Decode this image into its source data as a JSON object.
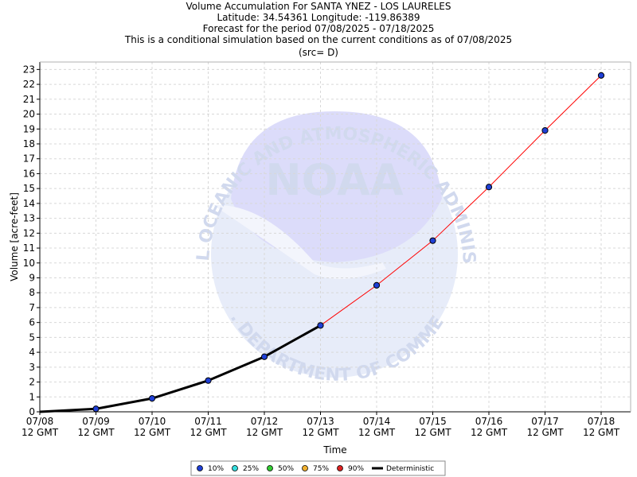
{
  "titles": [
    "Volume Accumulation For SANTA YNEZ - LOS LAURELES",
    "Latitude: 34.54361 Longitude: -119.86389",
    "Forecast for the period 07/08/2025 - 07/18/2025",
    "This is a conditional simulation based on the current conditions as of 07/08/2025",
    "(src= D)"
  ],
  "watermark": {
    "logo_text": "NOAA",
    "top_arc": "NATIONAL OCEANIC AND ATMOSPHERIC ADMINISTRATION",
    "bottom_arc": "U.S. DEPARTMENT OF COMMERCE"
  },
  "chart_data": {
    "type": "line",
    "title": "Volume Accumulation For SANTA YNEZ - LOS LAURELES",
    "xlabel": "Time",
    "ylabel": "Volume [acre-feet]",
    "x_tick_labels": [
      [
        "07/08",
        "12 GMT"
      ],
      [
        "07/09",
        "12 GMT"
      ],
      [
        "07/10",
        "12 GMT"
      ],
      [
        "07/11",
        "12 GMT"
      ],
      [
        "07/12",
        "12 GMT"
      ],
      [
        "07/13",
        "12 GMT"
      ],
      [
        "07/14",
        "12 GMT"
      ],
      [
        "07/15",
        "12 GMT"
      ],
      [
        "07/16",
        "12 GMT"
      ],
      [
        "07/17",
        "12 GMT"
      ],
      [
        "07/18",
        "12 GMT"
      ]
    ],
    "ylim": [
      0,
      23.5
    ],
    "yticks": [
      0,
      1,
      2,
      3,
      4,
      5,
      6,
      7,
      8,
      9,
      10,
      11,
      12,
      13,
      14,
      15,
      16,
      17,
      18,
      19,
      20,
      21,
      22,
      23
    ],
    "grid": true,
    "legend_placement": "bottom",
    "series": [
      {
        "name": "Deterministic",
        "color": "#000000",
        "x": [
          "07/08 12 GMT",
          "07/09 12 GMT",
          "07/10 12 GMT",
          "07/11 12 GMT",
          "07/12 12 GMT",
          "07/13 12 GMT"
        ],
        "values": [
          0.0,
          0.2,
          0.9,
          2.1,
          3.7,
          5.8
        ]
      },
      {
        "name": "10%",
        "color": "#1f3fd6",
        "line_color": "#ff0000",
        "x": [
          "07/09 12 GMT",
          "07/10 12 GMT",
          "07/11 12 GMT",
          "07/12 12 GMT",
          "07/13 12 GMT",
          "07/14 12 GMT",
          "07/15 12 GMT",
          "07/16 12 GMT",
          "07/17 12 GMT",
          "07/18 12 GMT"
        ],
        "values": [
          0.2,
          0.9,
          2.1,
          3.7,
          5.8,
          8.5,
          11.5,
          15.1,
          18.9,
          22.6
        ]
      }
    ],
    "legend": [
      {
        "label": "10%",
        "color": "#1f3fd6",
        "kind": "marker"
      },
      {
        "label": "25%",
        "color": "#33dddd",
        "kind": "marker"
      },
      {
        "label": "50%",
        "color": "#33cc33",
        "kind": "marker"
      },
      {
        "label": "75%",
        "color": "#f0b030",
        "kind": "marker"
      },
      {
        "label": "90%",
        "color": "#dd2222",
        "kind": "marker"
      },
      {
        "label": "Deterministic",
        "color": "#000000",
        "kind": "line"
      }
    ]
  }
}
